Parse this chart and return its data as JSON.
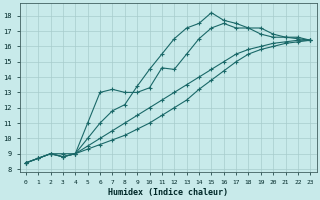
{
  "xlabel": "Humidex (Indice chaleur)",
  "background_color": "#c8eaea",
  "grid_color": "#a8cccc",
  "line_color": "#1a6868",
  "xlim": [
    -0.5,
    23.5
  ],
  "ylim": [
    7.8,
    18.8
  ],
  "xticks": [
    0,
    1,
    2,
    3,
    4,
    5,
    6,
    7,
    8,
    9,
    10,
    11,
    12,
    13,
    14,
    15,
    16,
    17,
    18,
    19,
    20,
    21,
    22,
    23
  ],
  "yticks": [
    8,
    9,
    10,
    11,
    12,
    13,
    14,
    15,
    16,
    17,
    18
  ],
  "series": [
    {
      "x": [
        0,
        1,
        2,
        3,
        4,
        5,
        6,
        7,
        8,
        9,
        10,
        11,
        12,
        13,
        14,
        15,
        16,
        17,
        18,
        19,
        20,
        21,
        22,
        23
      ],
      "y": [
        8.4,
        8.7,
        9.0,
        9.0,
        9.0,
        10.0,
        11.0,
        11.8,
        12.2,
        13.4,
        14.5,
        15.5,
        16.5,
        17.2,
        17.5,
        18.2,
        17.7,
        17.5,
        17.2,
        17.2,
        16.8,
        16.6,
        16.6,
        16.4
      ]
    },
    {
      "x": [
        0,
        1,
        2,
        3,
        4,
        5,
        6,
        7,
        8,
        9,
        10,
        11,
        12,
        13,
        14,
        15,
        16,
        17,
        18,
        19,
        20,
        21,
        22,
        23
      ],
      "y": [
        8.4,
        8.7,
        9.0,
        8.8,
        9.0,
        11.0,
        13.0,
        13.2,
        13.0,
        13.0,
        13.3,
        14.6,
        14.5,
        15.5,
        16.5,
        17.2,
        17.5,
        17.2,
        17.2,
        16.8,
        16.6,
        16.6,
        16.5,
        16.4
      ]
    },
    {
      "x": [
        0,
        1,
        2,
        3,
        4,
        5,
        6,
        7,
        8,
        9,
        10,
        11,
        12,
        13,
        14,
        15,
        16,
        17,
        18,
        19,
        20,
        21,
        22,
        23
      ],
      "y": [
        8.4,
        8.7,
        9.0,
        8.8,
        9.0,
        9.5,
        10.0,
        10.5,
        11.0,
        11.5,
        12.0,
        12.5,
        13.0,
        13.5,
        14.0,
        14.5,
        15.0,
        15.5,
        15.8,
        16.0,
        16.2,
        16.3,
        16.4,
        16.4
      ]
    },
    {
      "x": [
        0,
        1,
        2,
        3,
        4,
        5,
        6,
        7,
        8,
        9,
        10,
        11,
        12,
        13,
        14,
        15,
        16,
        17,
        18,
        19,
        20,
        21,
        22,
        23
      ],
      "y": [
        8.4,
        8.7,
        9.0,
        8.8,
        9.0,
        9.3,
        9.6,
        9.9,
        10.2,
        10.6,
        11.0,
        11.5,
        12.0,
        12.5,
        13.2,
        13.8,
        14.4,
        15.0,
        15.5,
        15.8,
        16.0,
        16.2,
        16.3,
        16.4
      ]
    }
  ]
}
